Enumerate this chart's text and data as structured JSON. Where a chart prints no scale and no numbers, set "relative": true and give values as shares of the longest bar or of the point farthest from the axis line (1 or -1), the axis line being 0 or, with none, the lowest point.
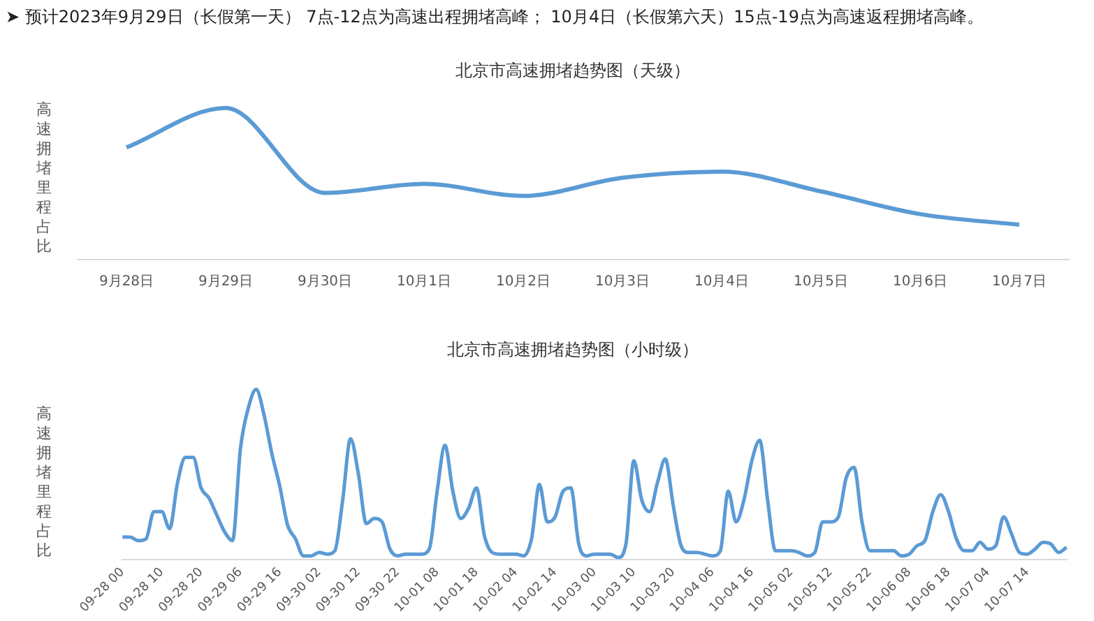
{
  "chart_data": [
    {
      "type": "line",
      "title": "北京市高速拥堵趋势图（天级）",
      "ylabel": "高速拥堵里程占比",
      "relative": true,
      "marker": "none",
      "annotations": [
        "➤ 预计2023年9月29日（长假第一天） 7点-12点为高速出程拥堵高峰； 10月4日（长假第六天）15点-19点为高速返程拥堵高峰。"
      ],
      "categories": [
        "9月28日",
        "9月29日",
        "9月30日",
        "10月1日",
        "10月2日",
        "10月3日",
        "10月4日",
        "10月5日",
        "10月6日",
        "10月7日"
      ],
      "series": [
        {
          "color": "#5b9bd5",
          "values": [
            0.74,
            1.0,
            0.44,
            0.5,
            0.42,
            0.54,
            0.58,
            0.45,
            0.3,
            0.23
          ]
        }
      ]
    },
    {
      "type": "line",
      "title": "北京市高速拥堵趋势图（小时级）",
      "ylabel": "高速拥堵里程占比",
      "relative": true,
      "marker": "none",
      "categories": [
        "09-28 00",
        null,
        null,
        null,
        null,
        "09-28 10",
        null,
        null,
        null,
        null,
        "09-28 20",
        null,
        null,
        null,
        null,
        "09-29 06",
        null,
        null,
        null,
        null,
        "09-29 16",
        null,
        null,
        null,
        null,
        "09-30 02",
        null,
        null,
        null,
        null,
        "09-30 12",
        null,
        null,
        null,
        null,
        "09-30 22",
        null,
        null,
        null,
        null,
        "10-01 08",
        null,
        null,
        null,
        null,
        "10-01 18",
        null,
        null,
        null,
        null,
        "10-02 04",
        null,
        null,
        null,
        null,
        "10-02 14",
        null,
        null,
        null,
        null,
        "10-03 00",
        null,
        null,
        null,
        null,
        "10-03 10",
        null,
        null,
        null,
        null,
        "10-03 20",
        null,
        null,
        null,
        null,
        "10-04 06",
        null,
        null,
        null,
        null,
        "10-04 16",
        null,
        null,
        null,
        null,
        "10-05 02",
        null,
        null,
        null,
        null,
        "10-05 12",
        null,
        null,
        null,
        null,
        "10-05 22",
        null,
        null,
        null,
        null,
        "10-06 08",
        null,
        null,
        null,
        null,
        "10-06 18",
        null,
        null,
        null,
        null,
        "10-07 04",
        null,
        null,
        null,
        null,
        "10-07 14",
        null,
        null,
        null,
        null,
        null
      ],
      "series": [
        {
          "color": "#5b9bd5",
          "values": [
            0.13,
            0.13,
            0.11,
            0.12,
            0.28,
            0.28,
            0.18,
            0.45,
            0.6,
            0.6,
            0.42,
            0.36,
            0.26,
            0.16,
            0.11,
            0.65,
            0.89,
            1.0,
            0.85,
            0.62,
            0.43,
            0.2,
            0.12,
            0.02,
            0.02,
            0.04,
            0.03,
            0.05,
            0.35,
            0.71,
            0.5,
            0.21,
            0.24,
            0.22,
            0.06,
            0.02,
            0.03,
            0.03,
            0.03,
            0.06,
            0.4,
            0.67,
            0.4,
            0.24,
            0.3,
            0.42,
            0.14,
            0.04,
            0.03,
            0.03,
            0.03,
            0.02,
            0.12,
            0.44,
            0.22,
            0.25,
            0.4,
            0.42,
            0.09,
            0.02,
            0.03,
            0.03,
            0.03,
            0.01,
            0.09,
            0.58,
            0.35,
            0.28,
            0.45,
            0.59,
            0.32,
            0.08,
            0.04,
            0.04,
            0.03,
            0.02,
            0.05,
            0.4,
            0.22,
            0.35,
            0.58,
            0.7,
            0.35,
            0.05,
            0.05,
            0.05,
            0.04,
            0.02,
            0.04,
            0.22,
            0.22,
            0.25,
            0.48,
            0.54,
            0.22,
            0.05,
            0.05,
            0.05,
            0.05,
            0.02,
            0.03,
            0.08,
            0.11,
            0.28,
            0.38,
            0.28,
            0.12,
            0.05,
            0.05,
            0.1,
            0.06,
            0.08,
            0.25,
            0.15,
            0.04,
            0.03,
            0.06,
            0.1,
            0.09,
            0.04,
            0.07
          ]
        }
      ]
    }
  ]
}
